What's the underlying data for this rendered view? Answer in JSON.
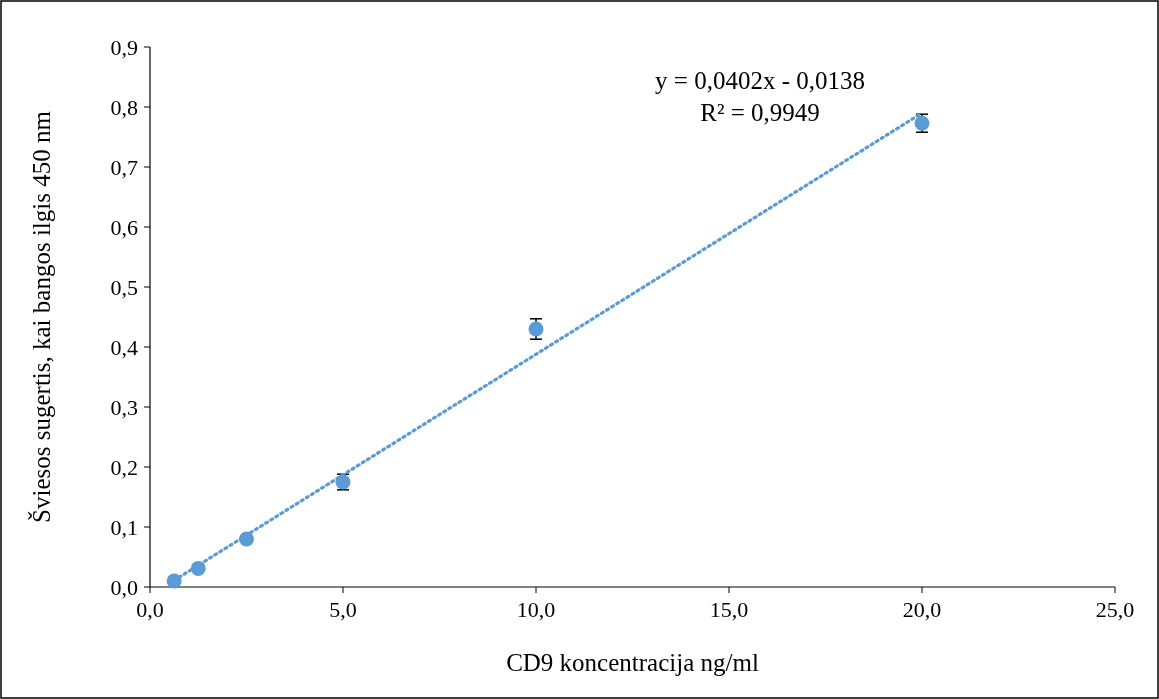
{
  "chart_data": {
    "type": "scatter",
    "xlabel": "CD9 koncentracija ng/ml",
    "ylabel": "Šviesos sugertis, kai bangos ilgis 450 nm",
    "annotations": [
      "y = 0,0402x - 0,0138",
      "R² = 0,9949"
    ],
    "series": [
      {
        "color": "#5b9bd5",
        "marker": "circle",
        "x": [
          0.625,
          1.25,
          2.5,
          5,
          10,
          20
        ],
        "values": [
          0.01,
          0.031,
          0.08,
          0.175,
          0.43,
          0.773
        ],
        "errors": [
          null,
          null,
          null,
          0.013,
          0.017,
          0.015
        ]
      },
      {
        "type": "line",
        "color": "#5b9bd5",
        "line_style": "dotted",
        "marker": "none",
        "x": [
          0.625,
          20
        ],
        "values": [
          0.011,
          0.79
        ]
      }
    ],
    "xlim": [
      0,
      25
    ],
    "xticks": [
      {
        "value": 0,
        "label": "0,0"
      },
      {
        "value": 5,
        "label": "5,0"
      },
      {
        "value": 10,
        "label": "10,0"
      },
      {
        "value": 15,
        "label": "15,0"
      },
      {
        "value": 20,
        "label": "20,0"
      },
      {
        "value": 25,
        "label": "25,0"
      }
    ],
    "ylim": [
      0,
      0.9
    ],
    "yticks": [
      {
        "value": 0,
        "label": "0,0"
      },
      {
        "value": 0.1,
        "label": "0,1"
      },
      {
        "value": 0.2,
        "label": "0,2"
      },
      {
        "value": 0.3,
        "label": "0,3"
      },
      {
        "value": 0.4,
        "label": "0,4"
      },
      {
        "value": 0.5,
        "label": "0,5"
      },
      {
        "value": 0.6,
        "label": "0,6"
      },
      {
        "value": 0.7,
        "label": "0,7"
      },
      {
        "value": 0.8,
        "label": "0,8"
      },
      {
        "value": 0.9,
        "label": "0,9"
      }
    ],
    "grid": false
  }
}
